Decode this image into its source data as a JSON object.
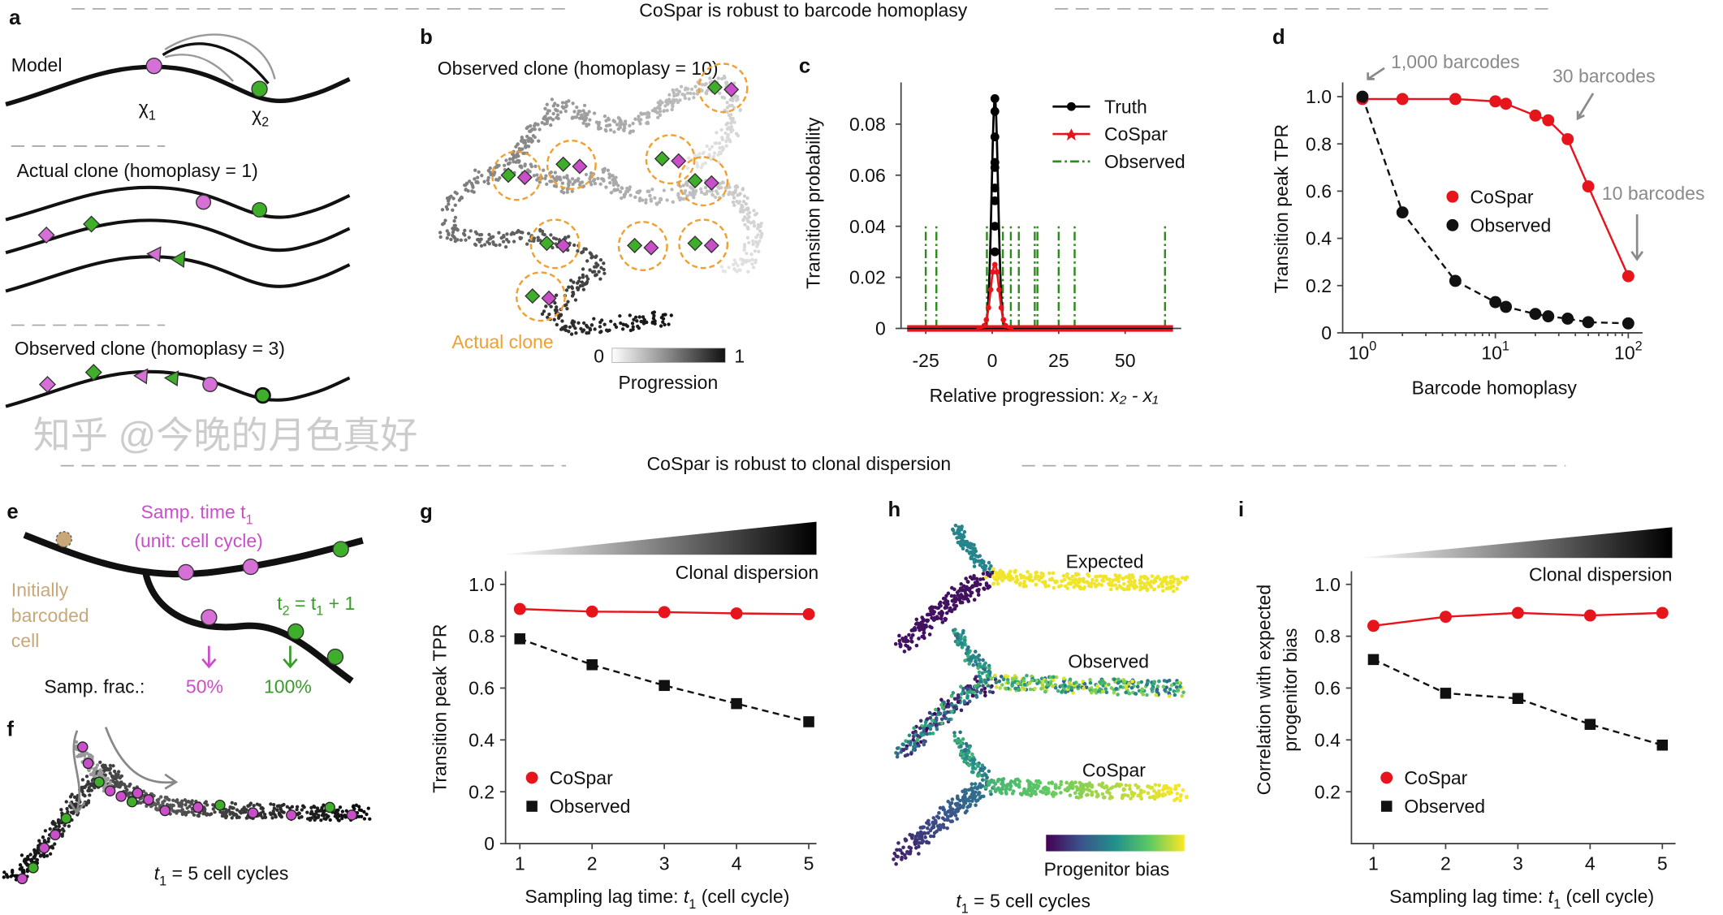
{
  "section_titles": [
    "CoSpar is robust to barcode homoplasy",
    "CoSpar is robust to clonal dispersion"
  ],
  "panel_letters": {
    "a": "a",
    "b": "b",
    "c": "c",
    "d": "d",
    "e": "e",
    "f": "f",
    "g": "g",
    "h": "h",
    "i": "i"
  },
  "panel_a": {
    "model": "Model",
    "x1": "χ",
    "x1_sub": "1",
    "x2": "χ",
    "x2_sub": "2",
    "actual": "Actual clone (homoplasy = 1)",
    "observed": "Observed clone (homoplasy = 3)"
  },
  "panel_b": {
    "title": "Observed clone (homoplasy = 10)",
    "actual_clone": "Actual clone",
    "cbar_min": "0",
    "cbar_max": "1",
    "cbar_label": "Progression"
  },
  "panel_e": {
    "samp_time": "Samp. time t",
    "samp_time_sub": "1",
    "unit": "(unit: cell cycle)",
    "initially": [
      "Initially",
      "barcoded",
      "cell"
    ],
    "t2": "t",
    "t2_sub": "2",
    "t2_rest": " = t",
    "t2_sub2": "1",
    "t2_end": " + 1",
    "samp_frac": "Samp. frac.:",
    "frac1": "50%",
    "frac2": "100%"
  },
  "panel_f": {
    "caption": "t",
    "caption_sub": "1",
    "caption_rest": " = 5 cell cycles"
  },
  "panel_h": {
    "labels": [
      "Expected",
      "Observed",
      "CoSpar"
    ],
    "cbar_label": "Progenitor bias",
    "caption": "t",
    "caption_sub": "1",
    "caption_rest": " = 5 cell cycles"
  },
  "watermark": "知乎 @今晚的月色真好",
  "colors": {
    "cospar": "#e8141c",
    "observed": "#111111",
    "truth": "#000000",
    "observed_c": "#2e8b1e",
    "purple": "#c94fc9",
    "green": "#3fae2a",
    "orange": "#f0a030",
    "annotation": "#8a8a8a"
  },
  "chart_data": [
    {
      "id": "c",
      "type": "line",
      "ylabel": "Transition probability",
      "xlabel": "Relative progression: ",
      "xlabel_math": "x₂ - x₁",
      "xlim": [
        -33,
        70
      ],
      "ylim": [
        0,
        0.095
      ],
      "xticks": [
        "-25",
        "0",
        "25",
        "50"
      ],
      "xtick_values": [
        -25,
        0,
        25,
        50
      ],
      "yticks": [
        "0",
        "0.02",
        "0.04",
        "0.06",
        "0.08"
      ],
      "ytick_values": [
        0,
        0.02,
        0.04,
        0.06,
        0.08
      ],
      "legend": "top-right",
      "series": [
        {
          "name": "Truth",
          "style": "line-dot",
          "peak_x": 1,
          "peak_y": 0.09,
          "width": 1.2
        },
        {
          "name": "CoSpar",
          "style": "line-star",
          "peak_x": 1,
          "peak_y": 0.025,
          "width": 1.6
        },
        {
          "name": "Observed",
          "style": "dashdot",
          "spikes_x": [
            -25,
            -21,
            -2,
            4,
            7,
            10,
            16,
            17,
            25,
            31,
            65
          ],
          "spike_y": 0.04
        }
      ]
    },
    {
      "id": "d",
      "type": "line",
      "ylabel": "Transition peak TPR",
      "xlabel": "Barcode homoplasy",
      "xscale": "log",
      "xlim": [
        0.9,
        130
      ],
      "ylim": [
        0,
        1.05
      ],
      "xticks": [
        "10",
        "10",
        "10"
      ],
      "xtick_exp": [
        "0",
        "1",
        "2"
      ],
      "xtick_values": [
        1,
        10,
        100
      ],
      "yticks": [
        "0",
        "0.2",
        "0.4",
        "0.6",
        "0.8",
        "1.0"
      ],
      "ytick_values": [
        0,
        0.2,
        0.4,
        0.6,
        0.8,
        1.0
      ],
      "legend": "center",
      "x": [
        1,
        2,
        5,
        10,
        12,
        20,
        25,
        35,
        50,
        100
      ],
      "series": [
        {
          "name": "CoSpar",
          "values": [
            0.99,
            0.99,
            0.99,
            0.98,
            0.97,
            0.92,
            0.9,
            0.82,
            0.62,
            0.24
          ]
        },
        {
          "name": "Observed",
          "values": [
            1.0,
            0.51,
            0.22,
            0.13,
            0.11,
            0.08,
            0.07,
            0.06,
            0.045,
            0.04
          ]
        }
      ],
      "annotations": [
        "1,000 barcodes",
        "30 barcodes",
        "10 barcodes"
      ]
    },
    {
      "id": "g",
      "type": "line",
      "ylabel": "Transition peak TPR",
      "xlabel": "Sampling lag time: ",
      "xlabel_t": "t",
      "xlabel_sub": "1",
      "xlabel_end": " (cell cycle)",
      "gradient_label": "Clonal dispersion",
      "xlim": [
        0.8,
        5.2
      ],
      "ylim": [
        0,
        1.05
      ],
      "x": [
        1,
        2,
        3,
        4,
        5
      ],
      "xticks": [
        "1",
        "2",
        "3",
        "4",
        "5"
      ],
      "yticks": [
        "0",
        "0.2",
        "0.4",
        "0.6",
        "0.8",
        "1.0"
      ],
      "ytick_values": [
        0,
        0.2,
        0.4,
        0.6,
        0.8,
        1.0
      ],
      "legend": "bottom-left",
      "series": [
        {
          "name": "CoSpar",
          "values": [
            0.905,
            0.895,
            0.893,
            0.888,
            0.885
          ]
        },
        {
          "name": "Observed",
          "values": [
            0.79,
            0.69,
            0.61,
            0.54,
            0.47
          ]
        }
      ]
    },
    {
      "id": "i",
      "type": "line",
      "ylabel": [
        "Correlation with expected",
        "progenitor bias"
      ],
      "xlabel": "Sampling lag time: ",
      "xlabel_t": "t",
      "xlabel_sub": "1",
      "xlabel_end": " (cell cycle)",
      "gradient_label": "Clonal dispersion",
      "xlim": [
        0.7,
        5.2
      ],
      "ylim": [
        0,
        1.05
      ],
      "x": [
        1,
        2,
        3,
        4,
        5
      ],
      "xticks": [
        "1",
        "2",
        "3",
        "4",
        "5"
      ],
      "yticks": [
        "0.2",
        "0.4",
        "0.6",
        "0.8",
        "1.0"
      ],
      "ytick_values": [
        0.2,
        0.4,
        0.6,
        0.8,
        1.0
      ],
      "legend": "bottom-left",
      "series": [
        {
          "name": "CoSpar",
          "values": [
            0.84,
            0.875,
            0.89,
            0.88,
            0.89
          ]
        },
        {
          "name": "Observed",
          "values": [
            0.71,
            0.58,
            0.56,
            0.46,
            0.38
          ]
        }
      ]
    }
  ]
}
